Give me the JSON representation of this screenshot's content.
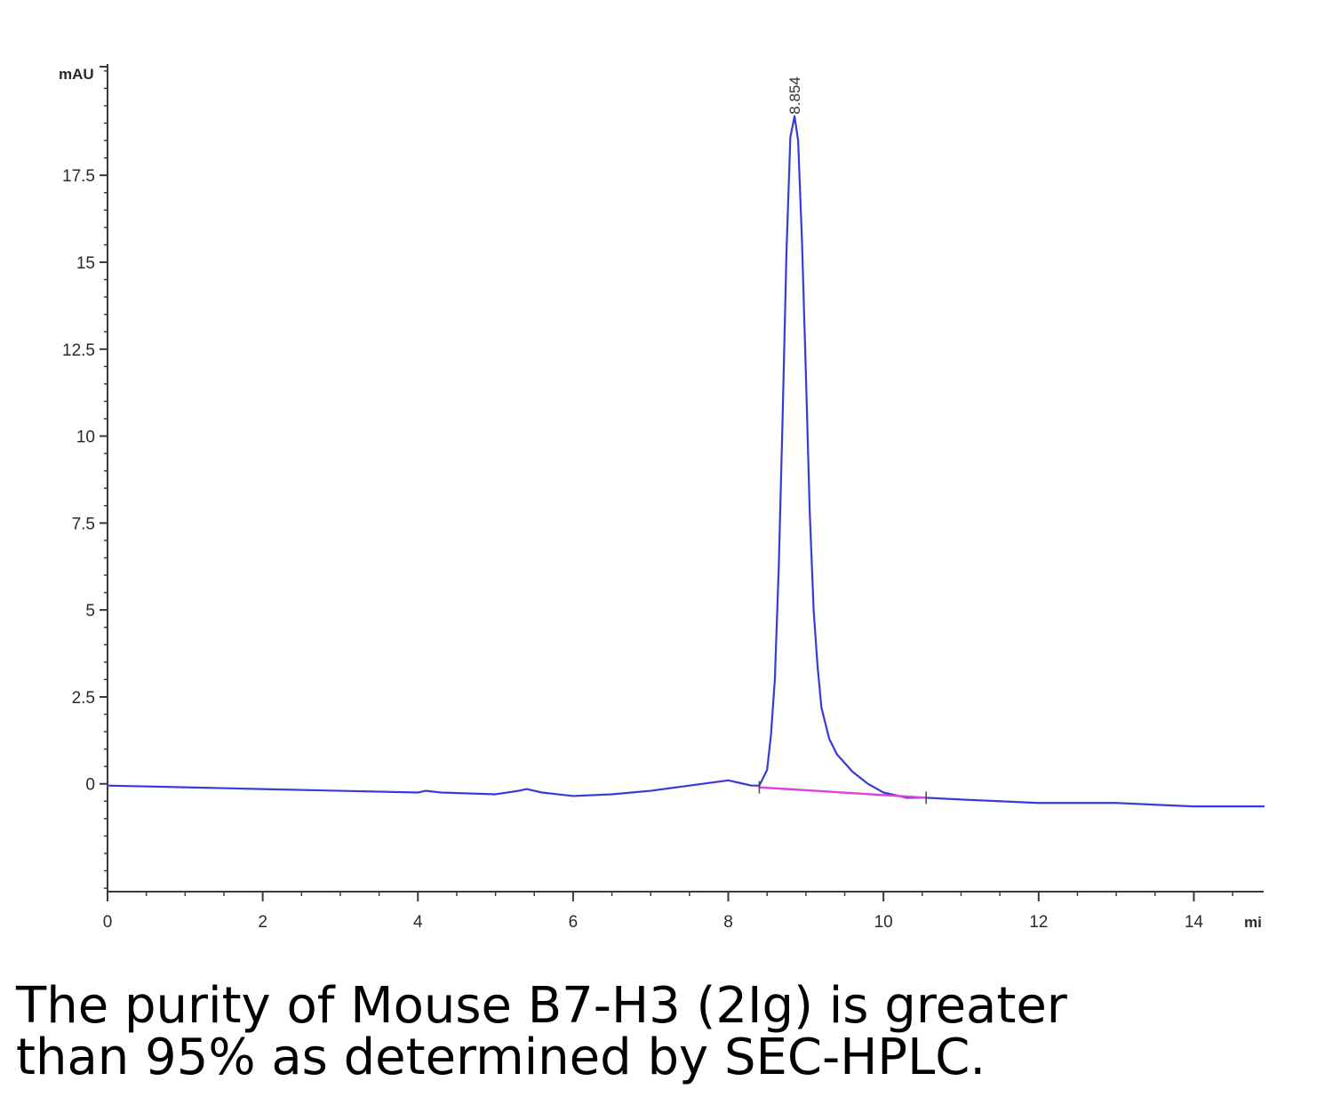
{
  "chart_data": {
    "type": "line",
    "title": "",
    "xlabel": "",
    "ylabel": "",
    "y_unit_label": "mAU",
    "x_unit_label": "mi",
    "xlim": [
      0,
      14.9
    ],
    "ylim": [
      -3.1,
      20.7
    ],
    "x_ticks": [
      0,
      2,
      4,
      6,
      8,
      10,
      12,
      14
    ],
    "x_tick_labels": [
      "0",
      "2",
      "4",
      "6",
      "8",
      "10",
      "12",
      "14"
    ],
    "y_ticks": [
      0,
      2.5,
      5,
      7.5,
      10,
      12.5,
      15,
      17.5
    ],
    "y_tick_labels": [
      "0",
      "2.5",
      "5",
      "7.5",
      "10",
      "12.5",
      "15",
      "17.5"
    ],
    "grid": false,
    "series": [
      {
        "color": "#3a3ad6",
        "x": [
          0,
          1,
          2,
          3,
          4,
          4.1,
          4.3,
          5,
          5.3,
          5.4,
          5.6,
          6,
          6.5,
          7,
          7.5,
          8,
          8.2,
          8.3,
          8.4,
          8.5,
          8.55,
          8.6,
          8.65,
          8.7,
          8.75,
          8.8,
          8.854,
          8.9,
          8.95,
          9.0,
          9.05,
          9.1,
          9.15,
          9.2,
          9.3,
          9.4,
          9.6,
          9.8,
          10,
          10.3,
          10.55,
          11,
          12,
          13,
          14,
          14.9
        ],
        "values": [
          -0.05,
          -0.1,
          -0.15,
          -0.2,
          -0.25,
          -0.2,
          -0.25,
          -0.3,
          -0.2,
          -0.15,
          -0.25,
          -0.35,
          -0.3,
          -0.2,
          -0.05,
          0.1,
          0.0,
          -0.05,
          -0.05,
          0.4,
          1.4,
          3.0,
          6.2,
          10.5,
          15.3,
          18.6,
          19.2,
          18.5,
          15.6,
          11.8,
          7.8,
          5.0,
          3.4,
          2.2,
          1.3,
          0.85,
          0.35,
          0.0,
          -0.25,
          -0.4,
          -0.4,
          -0.45,
          -0.55,
          -0.55,
          -0.65,
          -0.65
        ]
      },
      {
        "name": "baseline",
        "color": "#e040e0",
        "x": [
          8.4,
          10.55
        ],
        "values": [
          -0.1,
          -0.4
        ]
      }
    ],
    "annotations": [
      {
        "text": "8.854",
        "x": 8.854,
        "y": 19.2
      }
    ],
    "integration_markers": [
      8.4,
      10.55
    ]
  },
  "caption": {
    "line1": "The purity of Mouse B7-H3 (2Ig) is greater",
    "line2": "than 95% as determined by SEC-HPLC."
  }
}
